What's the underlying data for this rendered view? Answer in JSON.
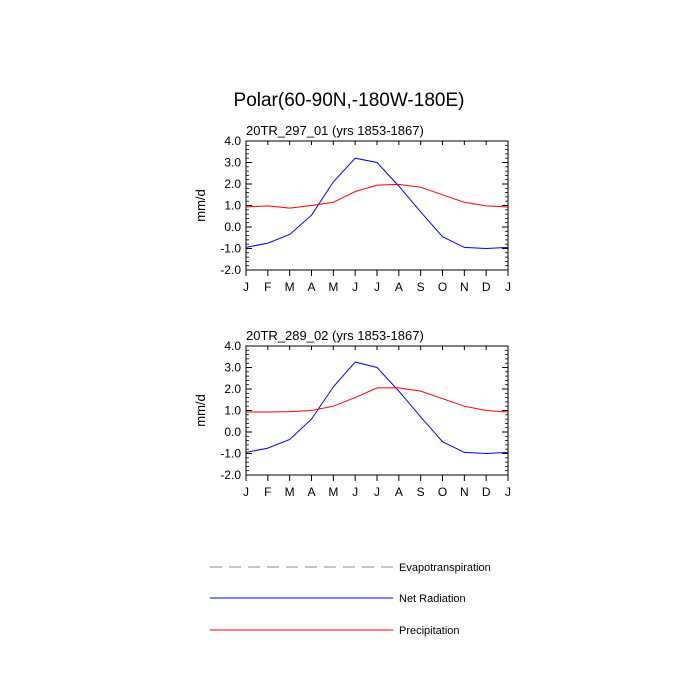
{
  "chart_data": {
    "type": "line",
    "title": "Polar(60-90N,-180W-180E)",
    "ylabel": "mm/d",
    "ylim": [
      -2.0,
      4.0
    ],
    "yticks": [
      "4.0",
      "3.0",
      "2.0",
      "1.0",
      "0.0",
      "-1.0",
      "-2.0"
    ],
    "categories": [
      "J",
      "F",
      "M",
      "A",
      "M",
      "J",
      "J",
      "A",
      "S",
      "O",
      "N",
      "D",
      "J"
    ],
    "colors": {
      "net_radiation": "#0000ff",
      "precipitation": "#ff0000",
      "evapotranspiration": "#888888"
    },
    "legend": [
      {
        "name": "Evapotranspiration",
        "style": "dashed",
        "color": "#888888"
      },
      {
        "name": "Net Radiation",
        "style": "solid",
        "color": "#0000ff"
      },
      {
        "name": "Precipitation",
        "style": "solid",
        "color": "#ff0000"
      }
    ],
    "panels": [
      {
        "subtitle": "20TR_297_01 (yrs 1853-1867)",
        "series": [
          {
            "name": "Net Radiation",
            "values": [
              -0.95,
              -0.75,
              -0.35,
              0.55,
              2.1,
              3.2,
              3.0,
              1.9,
              0.7,
              -0.45,
              -0.95,
              -1.0,
              -0.95
            ]
          },
          {
            "name": "Precipitation",
            "values": [
              0.93,
              0.98,
              0.88,
              1.0,
              1.15,
              1.65,
              1.95,
              1.98,
              1.85,
              1.5,
              1.15,
              0.98,
              0.93
            ]
          }
        ]
      },
      {
        "subtitle": "20TR_289_02 (yrs 1853-1867)",
        "series": [
          {
            "name": "Net Radiation",
            "values": [
              -0.95,
              -0.75,
              -0.35,
              0.6,
              2.1,
              3.25,
              3.0,
              1.9,
              0.7,
              -0.45,
              -0.95,
              -1.0,
              -0.95
            ]
          },
          {
            "name": "Precipitation",
            "values": [
              0.93,
              0.93,
              0.95,
              1.0,
              1.2,
              1.6,
              2.05,
              2.05,
              1.9,
              1.55,
              1.2,
              1.0,
              0.93
            ]
          }
        ]
      }
    ]
  }
}
